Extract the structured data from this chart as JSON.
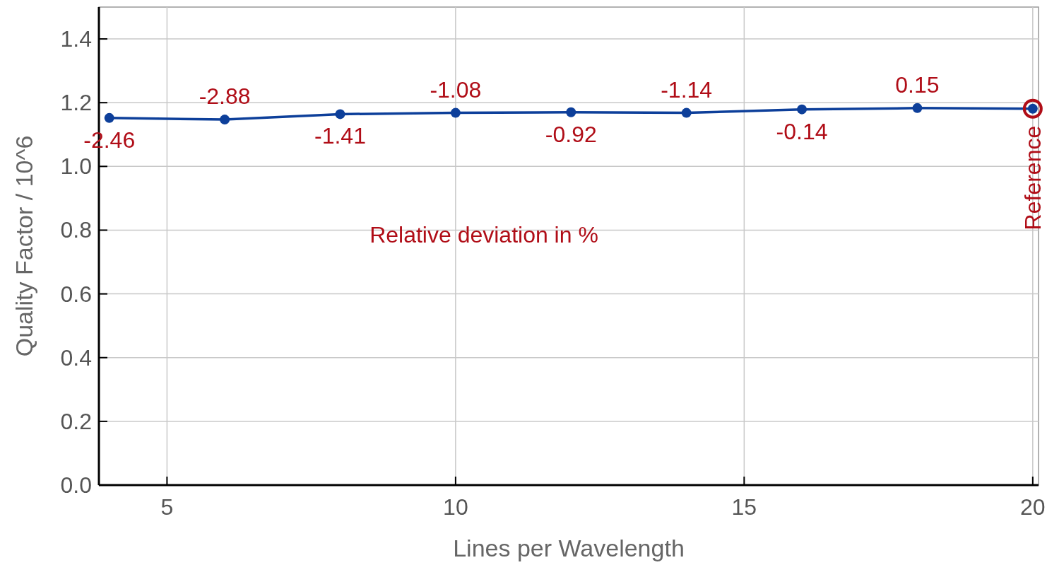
{
  "chart_data": {
    "type": "line",
    "xlabel": "Lines per Wavelength",
    "ylabel": "Quality Factor / 10^6",
    "xlim": [
      3.82,
      20.1
    ],
    "ylim": [
      0,
      1.5
    ],
    "xticks": [
      5,
      10,
      15,
      20
    ],
    "yticks": [
      {
        "value": 0,
        "label": "0.0"
      },
      0.2,
      0.4,
      0.6,
      0.8,
      {
        "value": 1,
        "label": "1.0"
      },
      1.2,
      1.4
    ],
    "grid": true,
    "marker": "circle",
    "line_style": "solid",
    "series": [
      {
        "color": "#0d3f9a",
        "x": [
          4,
          6,
          8,
          10,
          12,
          14,
          16,
          18,
          20
        ],
        "values": [
          1.152,
          1.147,
          1.164,
          1.168,
          1.17,
          1.168,
          1.179,
          1.183,
          1.181
        ]
      }
    ],
    "annotations": [
      {
        "text": "-2.46",
        "x": 4,
        "y": 1.152
      },
      {
        "text": "-2.88",
        "x": 6,
        "y": 1.147
      },
      {
        "text": "-1.41",
        "x": 8,
        "y": 1.164
      },
      {
        "text": "-1.08",
        "x": 10,
        "y": 1.168
      },
      {
        "text": "-0.92",
        "x": 12,
        "y": 1.17
      },
      {
        "text": "-1.14",
        "x": 14,
        "y": 1.168
      },
      {
        "text": "-0.14",
        "x": 16,
        "y": 1.179
      },
      {
        "text": "0.15",
        "x": 18,
        "y": 1.183
      },
      {
        "text": "Reference",
        "x": 20,
        "y": 1.181
      },
      "Relative deviation in %"
    ]
  }
}
